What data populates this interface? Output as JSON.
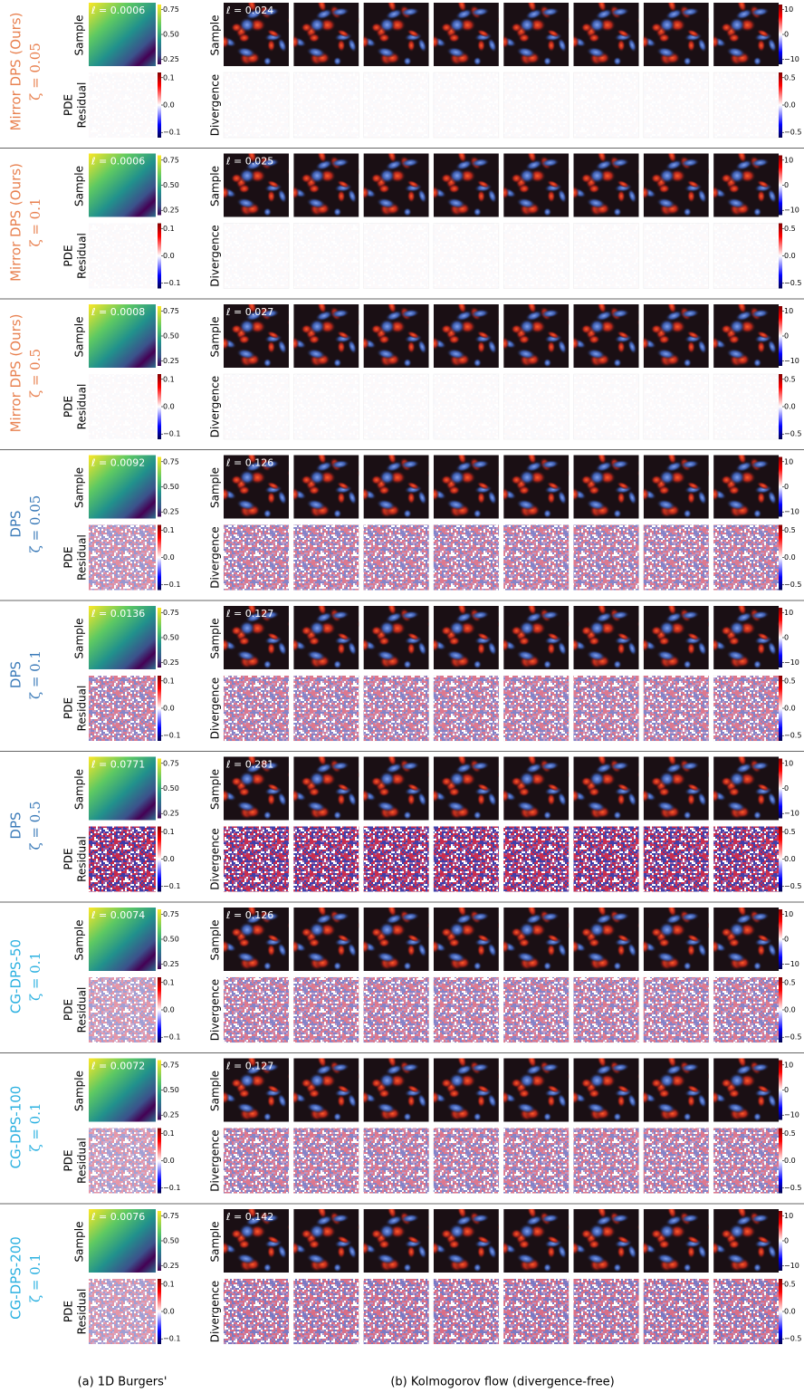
{
  "figure": {
    "loss_symbol": "ℓ =",
    "burgers": {
      "caption": "(a) 1D Burgers'",
      "sample_label": "Sample",
      "residual_label": [
        "PDE",
        "Residual"
      ],
      "sample_ticks": [
        "0.75",
        "0.50",
        "0.25"
      ],
      "residual_ticks": [
        "0.1",
        "0.0",
        "−0.1"
      ]
    },
    "kolmogorov": {
      "caption": "(b) Kolmogorov flow (divergence-free)",
      "sample_label": "Sample",
      "divergence_label": "Divergence",
      "sample_ticks": [
        "10",
        "0",
        "−10"
      ],
      "divergence_ticks": [
        "0.5",
        "0.0",
        "−0.5"
      ]
    },
    "rows": [
      {
        "method": "Mirror DPS (Ours)",
        "zeta": "ζ = 0.05",
        "color": "#e8804f",
        "burgers_loss": 0.0006,
        "kolmogorov_loss": 0.024
      },
      {
        "method": "Mirror DPS (Ours)",
        "zeta": "ζ = 0.1",
        "color": "#e8804f",
        "burgers_loss": 0.0006,
        "kolmogorov_loss": 0.025
      },
      {
        "method": "Mirror DPS (Ours)",
        "zeta": "ζ = 0.5",
        "color": "#e8804f",
        "burgers_loss": 0.0008,
        "kolmogorov_loss": 0.027
      },
      {
        "method": "DPS",
        "zeta": "ζ = 0.05",
        "color": "#3a7ab8",
        "burgers_loss": 0.0092,
        "kolmogorov_loss": 0.126
      },
      {
        "method": "DPS",
        "zeta": "ζ = 0.1",
        "color": "#3a7ab8",
        "burgers_loss": 0.0136,
        "kolmogorov_loss": 0.127
      },
      {
        "method": "DPS",
        "zeta": "ζ = 0.5",
        "color": "#3a7ab8",
        "burgers_loss": 0.0771,
        "kolmogorov_loss": 0.281
      },
      {
        "method": "CG-DPS-50",
        "zeta": "ζ = 0.1",
        "color": "#2ab0e0",
        "burgers_loss": 0.0074,
        "kolmogorov_loss": 0.126
      },
      {
        "method": "CG-DPS-100",
        "zeta": "ζ = 0.1",
        "color": "#2ab0e0",
        "burgers_loss": 0.0072,
        "kolmogorov_loss": 0.127
      },
      {
        "method": "CG-DPS-200",
        "zeta": "ζ = 0.1",
        "color": "#2ab0e0",
        "burgers_loss": 0.0076,
        "kolmogorov_loss": 0.142
      }
    ]
  }
}
